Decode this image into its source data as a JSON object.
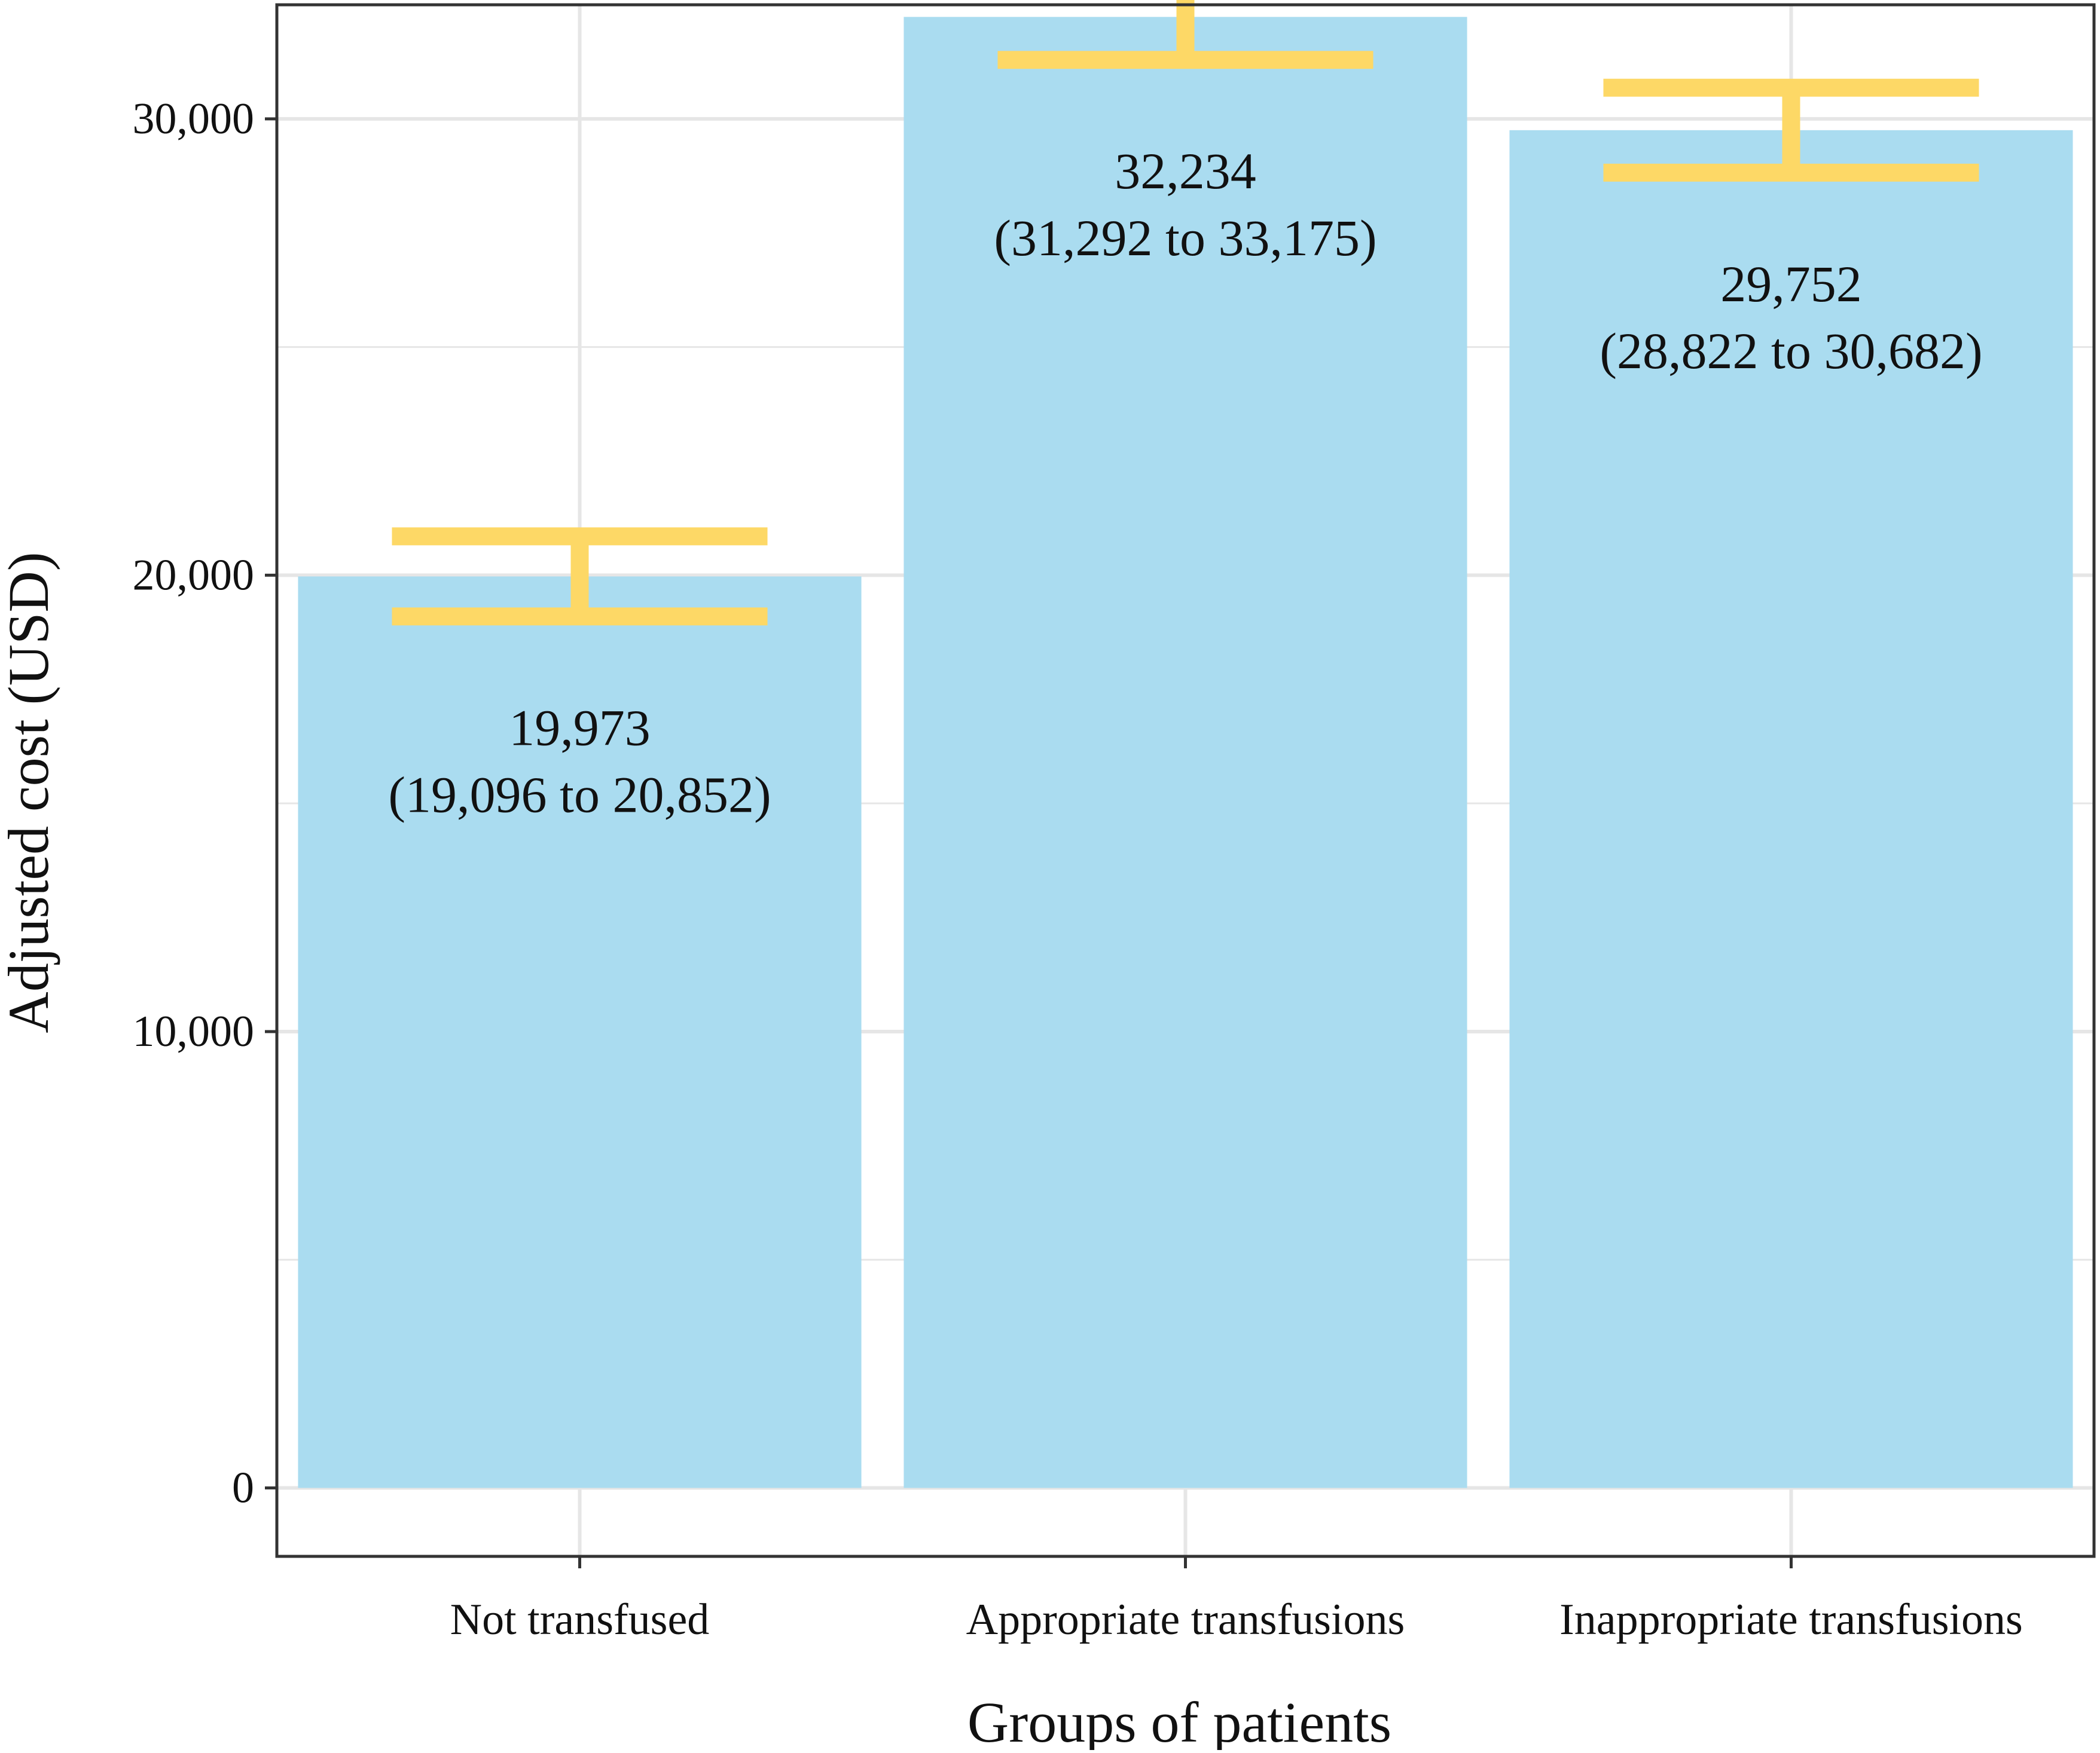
{
  "chart_data": {
    "type": "bar",
    "title": "",
    "xlabel": "Groups of patients",
    "ylabel": "Adjusted cost (USD)",
    "categories": [
      "Not transfused",
      "Appropriate transfusions",
      "Inappropriate transfusions"
    ],
    "values": [
      19973,
      32234,
      29752
    ],
    "ci_lower": [
      19096,
      31292,
      28822
    ],
    "ci_upper": [
      20852,
      33175,
      30682
    ],
    "value_labels": [
      "19,973",
      "32,234",
      "29,752"
    ],
    "ci_labels": [
      "(19,096 to 20,852)",
      "(31,292 to 33,175)",
      "(28,822 to 30,682)"
    ],
    "ylim": [
      -1500,
      32500
    ],
    "yticks": [
      0,
      10000,
      20000,
      30000
    ],
    "ytick_labels": [
      "0",
      "10,000",
      "20,000",
      "30,000"
    ],
    "grid": true,
    "legend": "none",
    "colors": {
      "bar": "#aadcf0",
      "error_bar": "#fdd866",
      "grid": "#e6e6e6",
      "axis": "#333333",
      "background": "#ffffff"
    }
  }
}
